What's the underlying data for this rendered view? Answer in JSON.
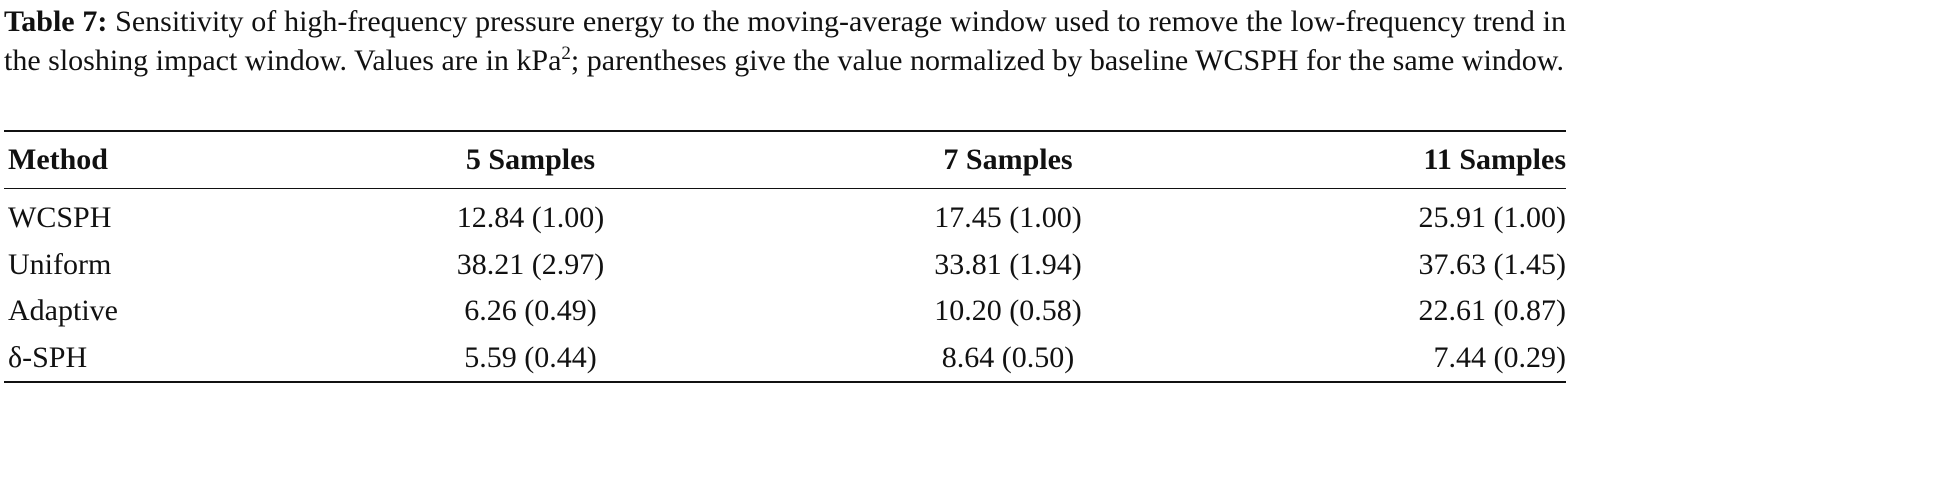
{
  "caption": {
    "label": "Table 7:",
    "text": "Sensitivity of high-frequency pressure energy to the moving-average window used to remove the low-frequency trend in the sloshing impact window. Values are in kPa",
    "superscript": "2",
    "text_after": "; parentheses give the value normalized by baseline WCSPH for the same window."
  },
  "table": {
    "header": [
      "Method",
      "5 Samples",
      "7 Samples",
      "11 Samples"
    ],
    "rows": [
      [
        "WCSPH",
        "12.84 (1.00)",
        "17.45 (1.00)",
        "25.91 (1.00)"
      ],
      [
        "Uniform",
        "38.21 (2.97)",
        "33.81 (1.94)",
        "37.63 (1.45)"
      ],
      [
        "Adaptive",
        "6.26 (0.49)",
        "10.20 (0.58)",
        "22.61 (0.87)"
      ],
      [
        "δ-SPH",
        "5.59 (0.44)",
        "8.64 (0.50)",
        "7.44 (0.29)"
      ]
    ]
  }
}
